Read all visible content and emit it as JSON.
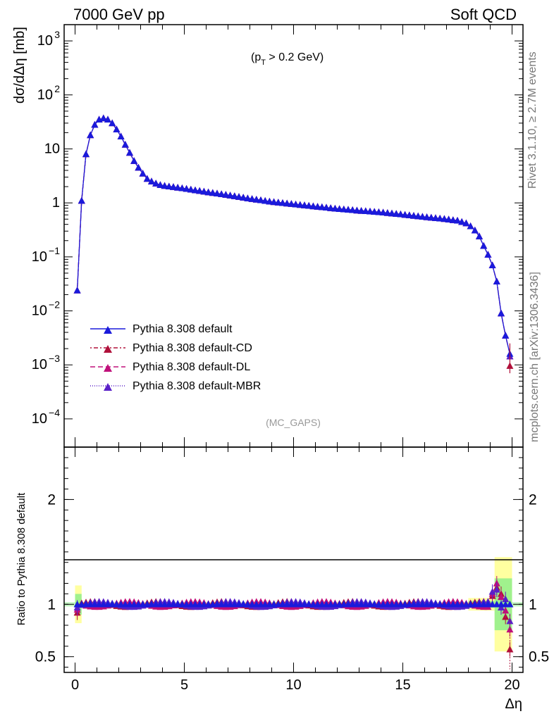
{
  "header": {
    "left": "7000 GeV pp",
    "right": "Soft QCD"
  },
  "annotation": {
    "pt_prefix": "(p",
    "pt_sub": "T",
    "pt_suffix": " > 0.2 GeV)",
    "analysis": "(MC_GAPS)"
  },
  "side_labels": {
    "rivet": "Rivet 3.1.10, ≥ 2.7M events",
    "mcplots": "mcplots.cern.ch [arXiv:1306.3436]"
  },
  "colors": {
    "default": "#1a1adb",
    "cd": "#b0103a",
    "dl": "#c0107a",
    "mbr": "#5a20c8",
    "band_yellow": "#ffff88",
    "band_green": "#88ee88"
  },
  "chart_data": [
    {
      "type": "line",
      "scale": "log-y",
      "ylabel": "dσ/dΔη [mb]",
      "xlim": [
        -0.5,
        20.5
      ],
      "ylim": [
        3e-05,
        2000
      ],
      "y_ticks": [
        {
          "value": 0.0001,
          "mant": "10",
          "exp": "−4"
        },
        {
          "value": 0.001,
          "mant": "10",
          "exp": "−3"
        },
        {
          "value": 0.01,
          "mant": "10",
          "exp": "−2"
        },
        {
          "value": 0.1,
          "mant": "10",
          "exp": "−1"
        },
        {
          "value": 1,
          "mant": "1",
          "exp": ""
        },
        {
          "value": 10,
          "mant": "10",
          "exp": ""
        },
        {
          "value": 100,
          "mant": "10",
          "exp": "2"
        },
        {
          "value": 1000,
          "mant": "10",
          "exp": "3"
        }
      ],
      "curve": [
        [
          0.1,
          0.024
        ],
        [
          0.3,
          1.1
        ],
        [
          0.5,
          8.0
        ],
        [
          0.7,
          18
        ],
        [
          0.9,
          28
        ],
        [
          1.1,
          35
        ],
        [
          1.3,
          37
        ],
        [
          1.5,
          35
        ],
        [
          1.7,
          30
        ],
        [
          1.9,
          23
        ],
        [
          2.1,
          17
        ],
        [
          2.3,
          12
        ],
        [
          2.5,
          8.5
        ],
        [
          2.7,
          6.0
        ],
        [
          2.9,
          4.5
        ],
        [
          3.1,
          3.5
        ],
        [
          3.3,
          2.8
        ],
        [
          3.5,
          2.5
        ],
        [
          3.8,
          2.2
        ],
        [
          4.0,
          2.1
        ],
        [
          5.0,
          1.85
        ],
        [
          6.0,
          1.6
        ],
        [
          7.0,
          1.4
        ],
        [
          8.0,
          1.2
        ],
        [
          9.0,
          1.05
        ],
        [
          10.0,
          0.95
        ],
        [
          11.0,
          0.86
        ],
        [
          12.0,
          0.78
        ],
        [
          13.0,
          0.72
        ],
        [
          14.0,
          0.67
        ],
        [
          15.0,
          0.61
        ],
        [
          16.0,
          0.55
        ],
        [
          17.0,
          0.5
        ],
        [
          17.5,
          0.47
        ],
        [
          17.9,
          0.42
        ],
        [
          18.1,
          0.37
        ],
        [
          18.3,
          0.31
        ],
        [
          18.5,
          0.24
        ],
        [
          18.7,
          0.16
        ],
        [
          18.9,
          0.11
        ],
        [
          19.1,
          0.07
        ],
        [
          19.3,
          0.035
        ],
        [
          19.5,
          0.009
        ],
        [
          19.7,
          0.0035
        ],
        [
          19.9,
          0.0016
        ]
      ],
      "series": [
        {
          "name": "Pythia 8.308 default",
          "color_key": "default",
          "dash": ""
        },
        {
          "name": "Pythia 8.308 default-CD",
          "color_key": "cd",
          "dash": "2 3 6 3"
        },
        {
          "name": "Pythia 8.308 default-DL",
          "color_key": "dl",
          "dash": "7 4"
        },
        {
          "name": "Pythia 8.308 default-MBR",
          "color_key": "mbr",
          "dash": "1 2"
        }
      ],
      "legend_position": "lower-left"
    },
    {
      "type": "line",
      "ylabel": "Ratio to Pythia 8.308 default",
      "xlabel": "Δη",
      "xlim": [
        -0.5,
        20.5
      ],
      "ylim": [
        0.35,
        2.5
      ],
      "y_ticks": [
        0.5,
        1,
        2
      ],
      "y_tick_labels": [
        "0.5",
        "1",
        "2"
      ],
      "x_ticks": [
        0,
        5,
        10,
        15,
        20
      ],
      "x_tick_labels": [
        "0",
        "5",
        "10",
        "15",
        "20"
      ],
      "edge_ratio_points": [
        {
          "x": 0.1,
          "cd": 0.92,
          "dl": 0.95,
          "mbr": 0.97
        },
        {
          "x": 19.1,
          "cd": 1.08,
          "dl": 1.1,
          "mbr": 1.12
        },
        {
          "x": 19.3,
          "cd": 1.16,
          "dl": 1.2,
          "mbr": 1.14
        },
        {
          "x": 19.5,
          "cd": 1.1,
          "dl": 1.07,
          "mbr": 0.97
        },
        {
          "x": 19.7,
          "cd": 0.88,
          "dl": 0.94,
          "mbr": 1.05
        },
        {
          "x": 19.9,
          "cd": 0.57,
          "dl": 0.76,
          "mbr": 0.84
        }
      ],
      "band_regions": [
        {
          "x": [
            0.0,
            0.3
          ],
          "half_width": 0.18
        },
        {
          "x": [
            18.0,
            19.2
          ],
          "half_width": 0.06
        },
        {
          "x": [
            19.2,
            20.0
          ],
          "half_width": 0.45
        }
      ]
    }
  ]
}
